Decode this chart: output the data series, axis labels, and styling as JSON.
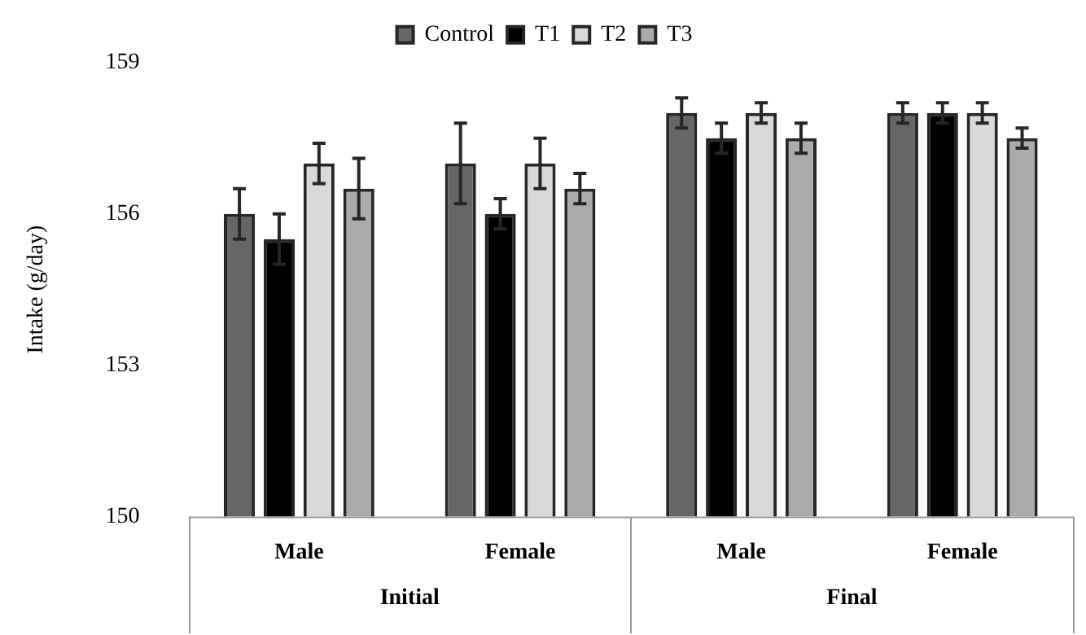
{
  "chart_data": {
    "type": "bar",
    "ylabel": "Intake (g/day)",
    "categories": [
      "Male",
      "Female",
      "Male",
      "Female"
    ],
    "series": [
      {
        "name": "Control",
        "color": "#666666",
        "values": [
          156,
          157,
          158,
          158
        ],
        "errors": [
          0.5,
          0.8,
          0.3,
          0.2
        ]
      },
      {
        "name": "T1",
        "color": "#000000",
        "values": [
          155.5,
          156,
          157.5,
          158
        ],
        "errors": [
          0.5,
          0.3,
          0.3,
          0.2
        ]
      },
      {
        "name": "T2",
        "color": "#d9d9d9",
        "values": [
          157,
          157,
          158,
          158
        ],
        "errors": [
          0.4,
          0.5,
          0.2,
          0.2
        ]
      },
      {
        "name": "T3",
        "color": "#ababab",
        "values": [
          156.5,
          156.5,
          157.5,
          157.5
        ],
        "errors": [
          0.6,
          0.3,
          0.3,
          0.2
        ]
      }
    ],
    "ylim": [
      150,
      159
    ],
    "yticks": [
      150,
      153,
      156,
      159
    ],
    "grid": false,
    "legend": "top",
    "annotations": [
      "Initial",
      "Final"
    ]
  }
}
